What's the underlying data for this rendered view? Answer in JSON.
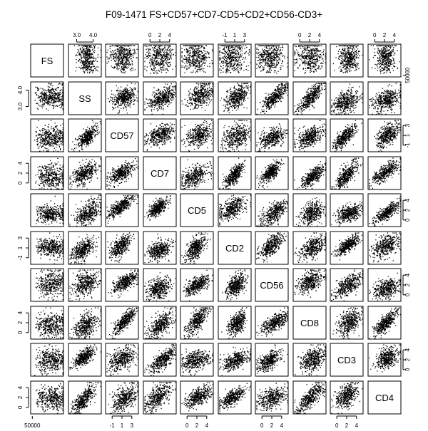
{
  "chart_data": {
    "type": "scatter",
    "title": "F09-1471 FS+CD57+CD7-CD5+CD2+CD56-CD3+",
    "variables": [
      "FS",
      "SS",
      "CD57",
      "CD7",
      "CD5",
      "CD2",
      "CD56",
      "CD8",
      "CD3",
      "CD4"
    ],
    "point_color": "#000000",
    "axis_ticks": {
      "FS": [
        "50000"
      ],
      "SS": [
        "3.0",
        "4.0"
      ],
      "CD57": [
        "-1",
        "1",
        "3"
      ],
      "CD7": [
        "0",
        "2",
        "4"
      ],
      "CD5": [
        "0",
        "2",
        "4"
      ],
      "CD2": [
        "-1",
        "1",
        "3"
      ],
      "CD56": [
        "0",
        "2",
        "4"
      ],
      "CD8": [
        "0",
        "2",
        "4"
      ],
      "CD3": [
        "0",
        "2",
        "4"
      ],
      "CD4": [
        "0",
        "2",
        "4"
      ]
    },
    "layout": "scatterplot-matrix",
    "grid": false,
    "legend": "none"
  }
}
